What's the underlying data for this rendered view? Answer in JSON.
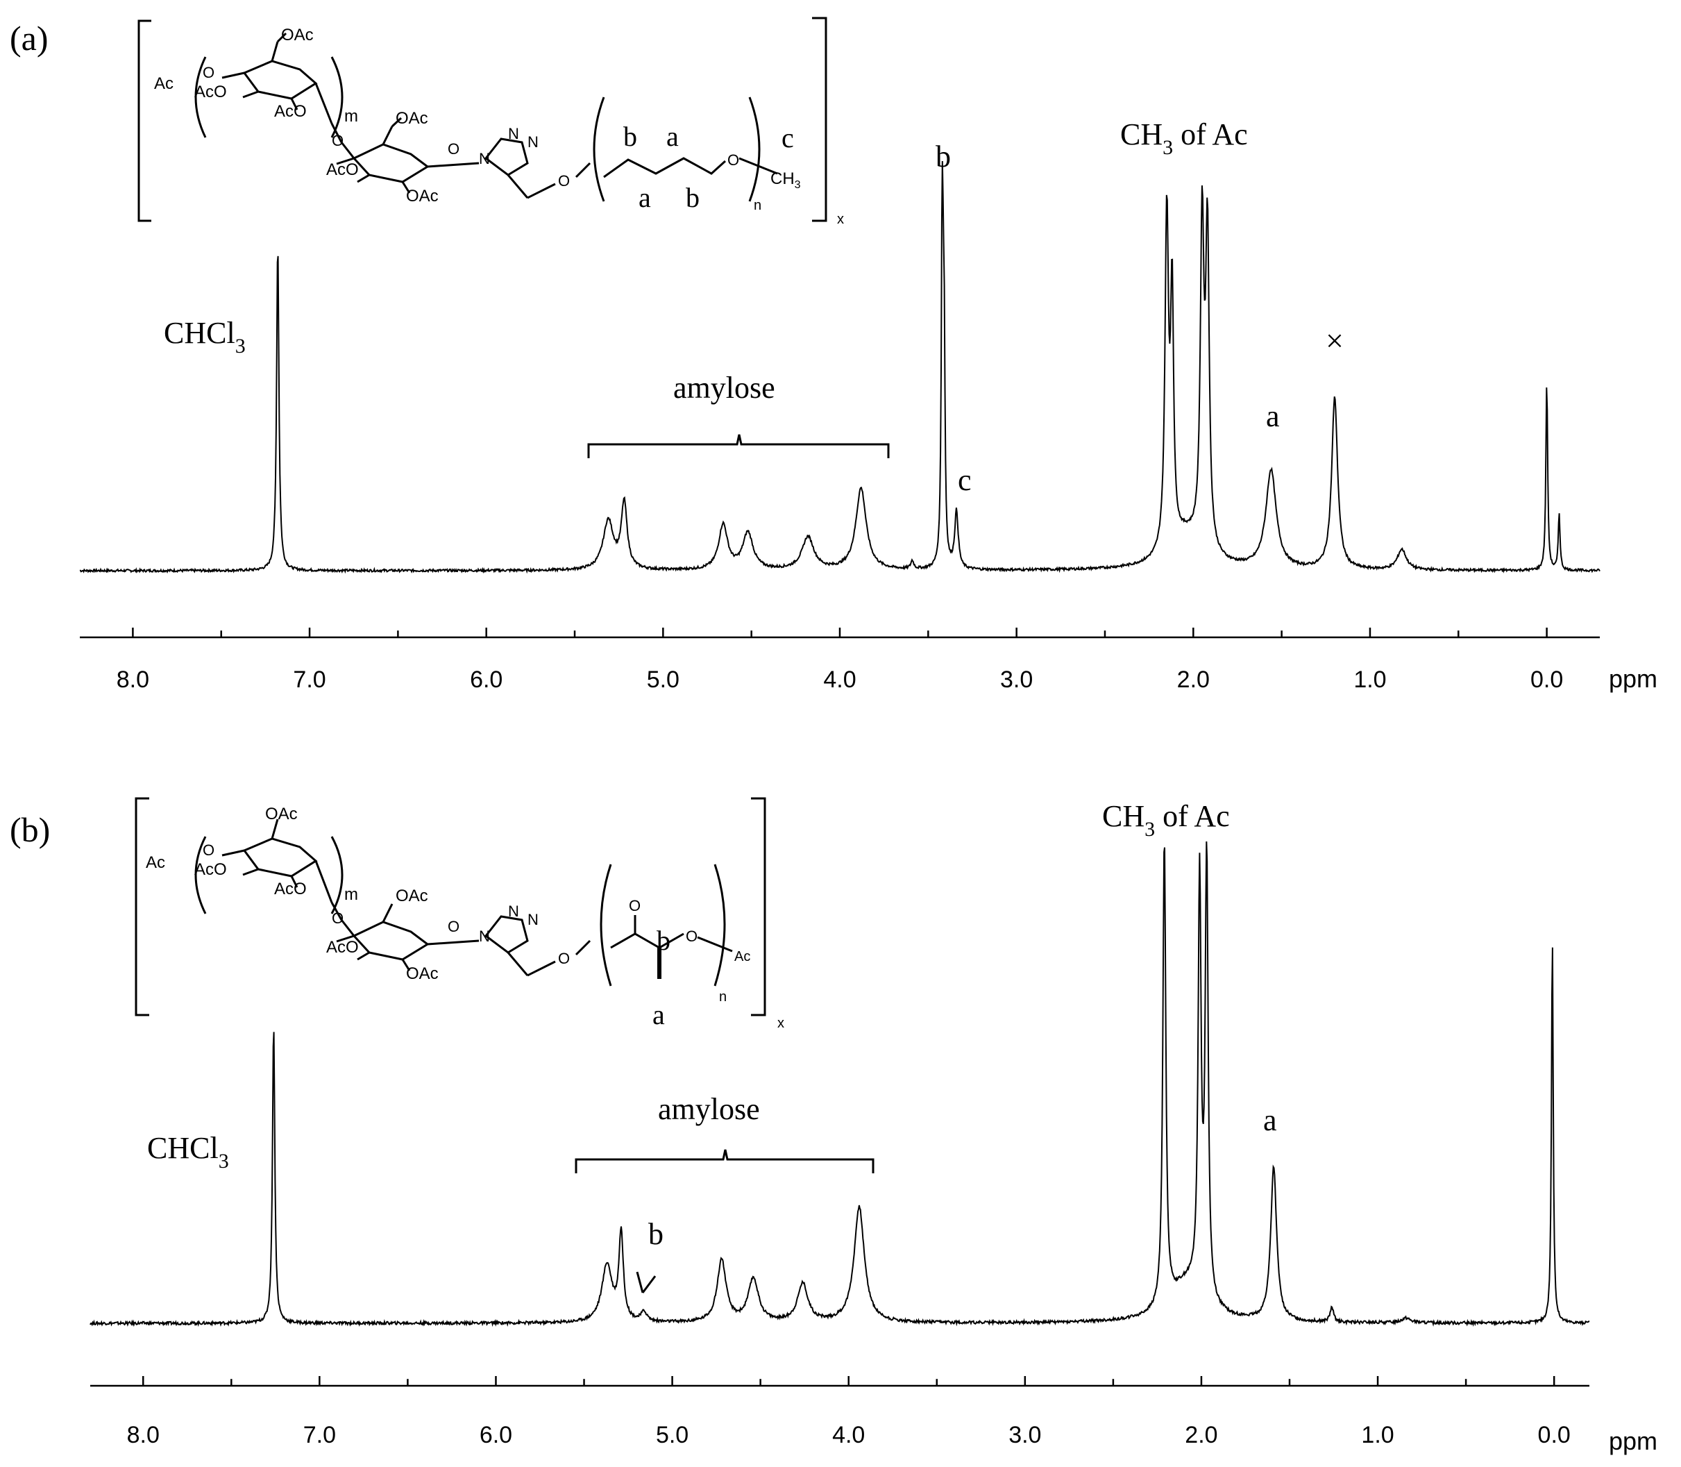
{
  "chart_data": [
    {
      "type": "line",
      "panel_label": "(a)",
      "xlabel": "ppm",
      "xlim": [
        8.3,
        -0.3
      ],
      "x_reversed": true,
      "ticks": [
        8.0,
        7.0,
        6.0,
        5.0,
        4.0,
        3.0,
        2.0,
        1.0,
        0.0
      ],
      "tick_labels": [
        "8.0",
        "7.0",
        "6.0",
        "5.0",
        "4.0",
        "3.0",
        "2.0",
        "1.0",
        "0.0"
      ],
      "y_units": "relative intensity (0 = baseline, 1 = tallest peak)",
      "peaks": [
        {
          "ppm": 7.18,
          "h": 0.8,
          "w": 0.008
        },
        {
          "ppm": 5.31,
          "h": 0.12,
          "w": 0.035
        },
        {
          "ppm": 5.22,
          "h": 0.16,
          "w": 0.02
        },
        {
          "ppm": 4.66,
          "h": 0.11,
          "w": 0.03
        },
        {
          "ppm": 4.52,
          "h": 0.09,
          "w": 0.035
        },
        {
          "ppm": 4.18,
          "h": 0.08,
          "w": 0.04
        },
        {
          "ppm": 3.88,
          "h": 0.2,
          "w": 0.035
        },
        {
          "ppm": 3.59,
          "h": 0.02,
          "w": 0.01
        },
        {
          "ppm": 3.42,
          "h": 0.96,
          "w": 0.006
        },
        {
          "ppm": 3.41,
          "h": 0.5,
          "w": 0.006
        },
        {
          "ppm": 3.34,
          "h": 0.14,
          "w": 0.012
        },
        {
          "ppm": 2.15,
          "h": 0.82,
          "w": 0.012
        },
        {
          "ppm": 2.12,
          "h": 0.6,
          "w": 0.01
        },
        {
          "ppm": 1.95,
          "h": 0.78,
          "w": 0.012
        },
        {
          "ppm": 1.92,
          "h": 0.76,
          "w": 0.012
        },
        {
          "ppm": 2.04,
          "h": 0.08,
          "w": 0.12
        },
        {
          "ppm": 1.56,
          "h": 0.24,
          "w": 0.035
        },
        {
          "ppm": 1.2,
          "h": 0.42,
          "w": 0.02
        },
        {
          "ppm": 0.82,
          "h": 0.05,
          "w": 0.03
        },
        {
          "ppm": 0.0,
          "h": 0.46,
          "w": 0.006
        },
        {
          "ppm": -0.07,
          "h": 0.14,
          "w": 0.006
        }
      ],
      "labels": [
        "CHCl3",
        "amylose",
        "b",
        "c",
        "CH3 of Ac",
        "a",
        "×"
      ],
      "structure_labels": {
        "chain_top": [
          "b",
          "a"
        ],
        "chain_bottom": [
          "a",
          "b"
        ],
        "end_group": "c",
        "end_group_formula": "CH3",
        "repeat_subscripts": [
          "m",
          "n",
          "x"
        ]
      }
    },
    {
      "type": "line",
      "panel_label": "(b)",
      "xlabel": "ppm",
      "xlim": [
        8.3,
        -0.2
      ],
      "x_reversed": true,
      "ticks": [
        8.0,
        7.0,
        6.0,
        5.0,
        4.0,
        3.0,
        2.0,
        1.0,
        0.0
      ],
      "tick_labels": [
        "8.0",
        "7.0",
        "6.0",
        "5.0",
        "4.0",
        "3.0",
        "2.0",
        "1.0",
        "0.0"
      ],
      "y_units": "relative intensity (0 = baseline, 1 = tallest peak)",
      "peaks": [
        {
          "ppm": 7.26,
          "h": 0.62,
          "w": 0.008
        },
        {
          "ppm": 5.37,
          "h": 0.12,
          "w": 0.035
        },
        {
          "ppm": 5.29,
          "h": 0.18,
          "w": 0.015
        },
        {
          "ppm": 5.16,
          "h": 0.02,
          "w": 0.02
        },
        {
          "ppm": 4.72,
          "h": 0.13,
          "w": 0.03
        },
        {
          "ppm": 4.54,
          "h": 0.09,
          "w": 0.035
        },
        {
          "ppm": 4.26,
          "h": 0.08,
          "w": 0.035
        },
        {
          "ppm": 3.94,
          "h": 0.24,
          "w": 0.035
        },
        {
          "ppm": 2.21,
          "h": 0.97,
          "w": 0.01
        },
        {
          "ppm": 2.01,
          "h": 0.86,
          "w": 0.01
        },
        {
          "ppm": 1.97,
          "h": 0.92,
          "w": 0.01
        },
        {
          "ppm": 2.08,
          "h": 0.08,
          "w": 0.12
        },
        {
          "ppm": 1.59,
          "h": 0.32,
          "w": 0.02
        },
        {
          "ppm": 1.26,
          "h": 0.03,
          "w": 0.012
        },
        {
          "ppm": 0.84,
          "h": 0.01,
          "w": 0.03
        },
        {
          "ppm": 0.01,
          "h": 0.8,
          "w": 0.006
        }
      ],
      "labels": [
        "CHCl3",
        "amylose",
        "b",
        "CH3 of Ac",
        "a"
      ],
      "structure_labels": {
        "chain_top": [
          "b"
        ],
        "chain_bottom": [
          "a"
        ],
        "end_group": "Ac",
        "repeat_subscripts": [
          "m",
          "n",
          "x"
        ]
      }
    }
  ],
  "panel_a": {
    "label": "(a)",
    "ppm_label": "ppm",
    "chcl3": {
      "main": "CHCl",
      "sub": "3"
    },
    "amylose": "amylose",
    "peak_b": "b",
    "peak_c": "c",
    "ch3_of_ac": {
      "main": "CH",
      "sub": "3",
      "rest": " of Ac"
    },
    "peak_a": "a",
    "impurity_mark": "×",
    "structure": {
      "ac": "Ac",
      "aco": "AcO",
      "oac": "OAc",
      "o": "O",
      "n_atom": "N",
      "m": "m",
      "n": "n",
      "x": "x",
      "chain_b1": "b",
      "chain_a1": "a",
      "chain_a2": "a",
      "chain_b2": "b",
      "end_c": "c",
      "ch3": {
        "main": "CH",
        "sub": "3"
      }
    }
  },
  "panel_b": {
    "label": "(b)",
    "ppm_label": "ppm",
    "chcl3": {
      "main": "CHCl",
      "sub": "3"
    },
    "amylose": "amylose",
    "peak_b": "b",
    "ch3_of_ac": {
      "main": "CH",
      "sub": "3",
      "rest": " of Ac"
    },
    "peak_a": "a",
    "structure": {
      "ac": "Ac",
      "aco": "AcO",
      "oac": "OAc",
      "o": "O",
      "n_atom": "N",
      "m": "m",
      "n": "n",
      "x": "x",
      "chain_b": "b",
      "chain_a": "a"
    }
  }
}
